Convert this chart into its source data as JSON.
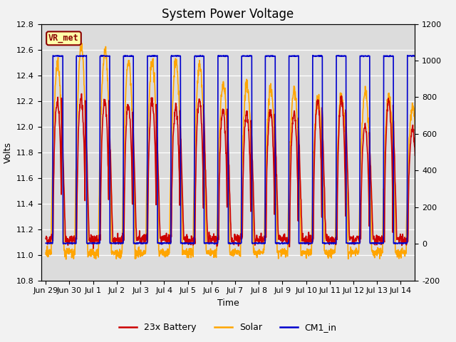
{
  "title": "System Power Voltage",
  "xlabel": "Time",
  "ylabel_left": "Volts",
  "ylim_left": [
    10.8,
    12.8
  ],
  "ylim_right": [
    -200,
    1200
  ],
  "yticks_left": [
    10.8,
    11.0,
    11.2,
    11.4,
    11.6,
    11.8,
    12.0,
    12.2,
    12.4,
    12.6,
    12.8
  ],
  "yticks_right": [
    -200,
    0,
    200,
    400,
    600,
    800,
    1000,
    1200
  ],
  "xtick_labels": [
    "Jun 29",
    "Jun 30",
    "Jul 1",
    "Jul 2",
    "Jul 3",
    "Jul 4",
    "Jul 5",
    "Jul 6",
    "Jul 7",
    "Jul 8",
    "Jul 9",
    "Jul 10",
    "Jul 11",
    "Jul 12",
    "Jul 13",
    "Jul 14"
  ],
  "annotation_text": "VR_met",
  "annotation_color": "#8B0000",
  "annotation_bg": "#FFFFAA",
  "plot_bg_color": "#DCDCDC",
  "fig_bg_color": "#F2F2F2",
  "grid_color": "#FFFFFF",
  "series": {
    "battery": {
      "label": "23x Battery",
      "color": "#CC0000",
      "lw": 1.2
    },
    "solar": {
      "label": "Solar",
      "color": "#FFA500",
      "lw": 1.2
    },
    "cm1": {
      "label": "CM1_in",
      "color": "#0000CD",
      "lw": 1.2
    }
  },
  "legend_fontsize": 9,
  "title_fontsize": 12,
  "tick_fontsize": 8,
  "label_fontsize": 9
}
